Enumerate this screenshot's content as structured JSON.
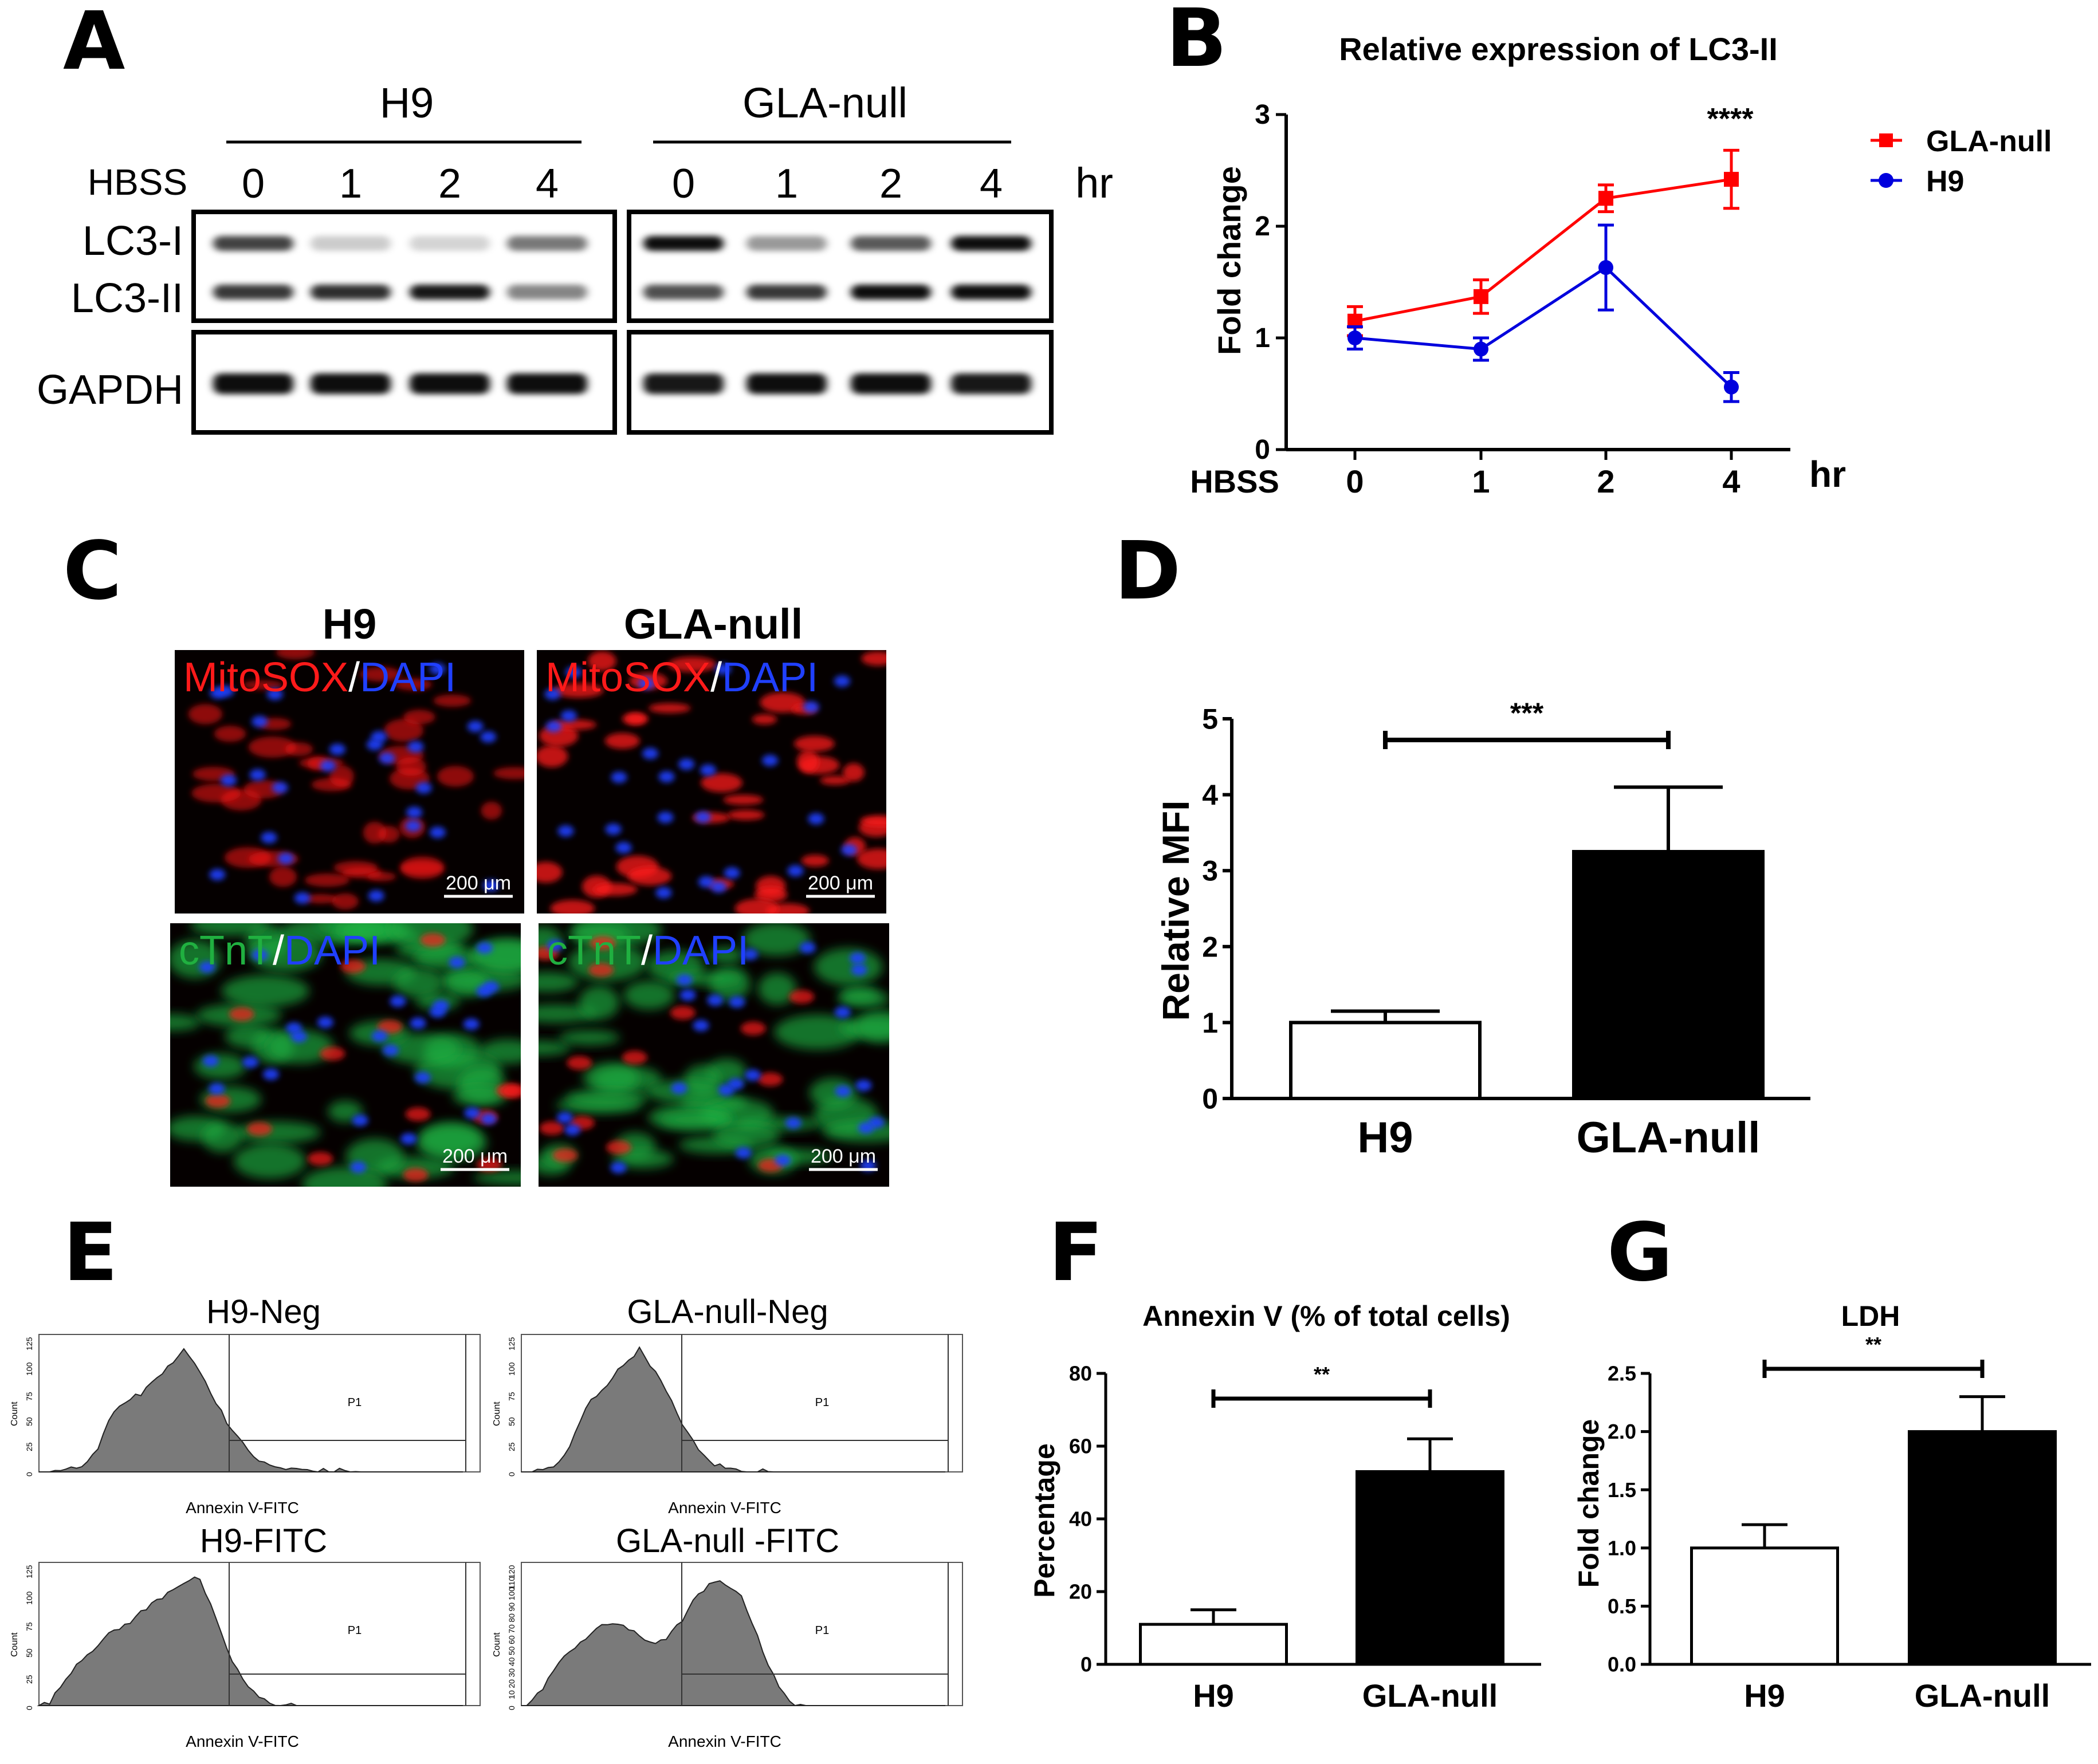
{
  "panels": {
    "A": {
      "letter": "A",
      "groups": [
        "H9",
        "GLA-null"
      ],
      "treatment_label": "HBSS",
      "time_points": [
        "0",
        "1",
        "2",
        "4"
      ],
      "time_unit": "hr",
      "row_labels": [
        "LC3-I",
        "LC3-II",
        "GAPDH"
      ],
      "band_intensity": {
        "H9": {
          "LC3-I": [
            0.75,
            0.12,
            0.08,
            0.5
          ],
          "LC3-II": [
            0.8,
            0.85,
            0.95,
            0.45
          ],
          "GAPDH": [
            1,
            1,
            1,
            1
          ]
        },
        "GLA-null": {
          "LC3-I": [
            1,
            0.35,
            0.65,
            1
          ],
          "LC3-II": [
            0.7,
            0.8,
            1,
            1
          ],
          "GAPDH": [
            0.95,
            1,
            1,
            0.95
          ]
        }
      }
    },
    "B": {
      "letter": "B"
    },
    "C": {
      "letter": "C",
      "columns": [
        "H9",
        "GLA-null"
      ],
      "top_stain": {
        "marker": "MitoSOX",
        "sep": "/",
        "counter": "DAPI"
      },
      "bottom_stain": {
        "marker": "cTnT",
        "sep": "/",
        "counter": "DAPI"
      },
      "scale_bar": "200 μm",
      "colors": {
        "mitosox": "#ff1a1a",
        "dapi": "#2040ff",
        "ctnt": "#20b040"
      }
    },
    "D": {
      "letter": "D"
    },
    "E": {
      "letter": "E",
      "plots": [
        {
          "title": "H9-Neg",
          "gate": "P1",
          "xlabel": "Annexin V-FITC",
          "ylabel": "Count",
          "y_ticks": [
            "0",
            "25",
            "50",
            "75",
            "100",
            "125"
          ],
          "hist": [
            0,
            0,
            0,
            1,
            2,
            3,
            5,
            6,
            8,
            12,
            15,
            25,
            38,
            52,
            60,
            66,
            70,
            72,
            78,
            80,
            85,
            90,
            96,
            100,
            105,
            110,
            118,
            124,
            120,
            112,
            102,
            90,
            80,
            72,
            62,
            52,
            42,
            34,
            28,
            22,
            17,
            12,
            8,
            6,
            5,
            4,
            3,
            3,
            2,
            2,
            2,
            1,
            1,
            1,
            1,
            1,
            1,
            1,
            1,
            1,
            0,
            0,
            0,
            0,
            0,
            0,
            0,
            0,
            0,
            0,
            0,
            0,
            0,
            0,
            0,
            0,
            0,
            0,
            0,
            0
          ]
        },
        {
          "title": "GLA-null-Neg",
          "gate": "P1",
          "xlabel": "Annexin V-FITC",
          "ylabel": "Count",
          "y_ticks": [
            "0",
            "25",
            "50",
            "75",
            "100",
            "125"
          ],
          "hist": [
            0,
            0,
            0,
            1,
            2,
            4,
            6,
            10,
            15,
            25,
            38,
            52,
            64,
            72,
            78,
            84,
            90,
            96,
            102,
            108,
            115,
            120,
            124,
            118,
            110,
            100,
            92,
            80,
            70,
            60,
            50,
            40,
            30,
            22,
            16,
            12,
            8,
            6,
            4,
            3,
            2,
            2,
            1,
            1,
            1,
            1,
            1,
            0,
            0,
            0,
            0,
            0,
            0,
            0,
            0,
            0,
            0,
            0,
            0,
            0,
            0,
            0,
            0,
            0,
            0,
            0,
            0,
            0,
            0,
            0,
            0,
            0,
            0,
            0,
            0,
            0,
            0,
            0,
            0,
            0
          ]
        },
        {
          "title": "H9-FITC",
          "gate": "P1",
          "xlabel": "Annexin V-FITC",
          "ylabel": "Count",
          "y_ticks": [
            "0",
            "25",
            "50",
            "75",
            "100",
            "125"
          ],
          "hist": [
            0,
            1,
            4,
            10,
            18,
            26,
            34,
            40,
            46,
            50,
            55,
            60,
            64,
            68,
            72,
            75,
            78,
            82,
            86,
            90,
            94,
            98,
            102,
            106,
            110,
            114,
            117,
            120,
            122,
            124,
            120,
            110,
            96,
            82,
            68,
            56,
            44,
            34,
            26,
            18,
            12,
            8,
            5,
            3,
            2,
            1,
            1,
            1,
            0,
            0,
            0,
            0,
            0,
            0,
            0,
            0,
            0,
            0,
            0,
            0,
            0,
            0,
            0,
            0,
            0,
            0,
            0,
            0,
            0,
            0,
            0,
            0,
            0,
            0,
            0,
            0,
            0,
            0,
            0,
            0
          ]
        },
        {
          "title": "GLA-null -FITC",
          "gate": "P1",
          "xlabel": "Annexin V-FITC",
          "ylabel": "Count",
          "y_ticks": [
            "0",
            "10",
            "20",
            "30",
            "40",
            "50",
            "60",
            "70",
            "80",
            "90",
            "100",
            "110",
            "120"
          ],
          "hist": [
            0,
            1,
            4,
            10,
            18,
            26,
            34,
            40,
            46,
            52,
            58,
            62,
            66,
            70,
            74,
            76,
            78,
            80,
            80,
            78,
            74,
            70,
            66,
            64,
            62,
            62,
            64,
            66,
            70,
            76,
            84,
            92,
            100,
            106,
            112,
            116,
            118,
            120,
            118,
            116,
            112,
            104,
            94,
            82,
            68,
            54,
            40,
            28,
            18,
            10,
            5,
            2,
            1,
            0,
            0,
            0,
            0,
            0,
            0,
            0,
            0,
            0,
            0,
            0,
            0,
            0,
            0,
            0,
            0,
            0,
            0,
            0,
            0,
            0,
            0,
            0,
            0,
            0,
            0,
            0
          ]
        }
      ]
    },
    "F": {
      "letter": "F"
    },
    "G": {
      "letter": "G"
    }
  },
  "chart_data": [
    {
      "panel": "B",
      "type": "line",
      "title": "Relative expression of LC3-II",
      "xlabel": "HBSS",
      "xunit": "hr",
      "ylabel": "Fold change",
      "categories": [
        "0",
        "1",
        "2",
        "4"
      ],
      "ylim": [
        0,
        3
      ],
      "yticks": [
        "0",
        "1",
        "2",
        "3"
      ],
      "annotation": "****",
      "series": [
        {
          "name": "GLA-null",
          "color": "#ff0000",
          "marker": "square",
          "values": [
            1.15,
            1.37,
            2.25,
            2.42
          ],
          "errors": [
            0.13,
            0.15,
            0.12,
            0.26
          ]
        },
        {
          "name": "H9",
          "color": "#0000dd",
          "marker": "circle",
          "values": [
            1.0,
            0.9,
            1.63,
            0.56
          ],
          "errors": [
            0.1,
            0.1,
            0.38,
            0.13
          ]
        }
      ]
    },
    {
      "panel": "D",
      "type": "bar",
      "title": "",
      "ylabel": "Relative MFI",
      "categories": [
        "H9",
        "GLA-null"
      ],
      "values": [
        1.0,
        3.25
      ],
      "errors": [
        0.15,
        0.85
      ],
      "fills": [
        "#ffffff",
        "#000000"
      ],
      "ylim": [
        0,
        5
      ],
      "yticks": [
        "0",
        "1",
        "2",
        "3",
        "4",
        "5"
      ],
      "significance": "***"
    },
    {
      "panel": "F",
      "type": "bar",
      "title": "Annexin V (% of total cells)",
      "ylabel": "Percentage",
      "categories": [
        "H9",
        "GLA-null"
      ],
      "values": [
        11,
        53
      ],
      "errors": [
        4,
        9
      ],
      "fills": [
        "#ffffff",
        "#000000"
      ],
      "ylim": [
        0,
        80
      ],
      "yticks": [
        "0",
        "20",
        "40",
        "60",
        "80"
      ],
      "significance": "**"
    },
    {
      "panel": "G",
      "type": "bar",
      "title": "LDH",
      "ylabel": "Fold change",
      "categories": [
        "H9",
        "GLA-null"
      ],
      "values": [
        1.0,
        2.0
      ],
      "errors": [
        0.2,
        0.3
      ],
      "fills": [
        "#ffffff",
        "#000000"
      ],
      "ylim": [
        0,
        2.5
      ],
      "yticks": [
        "0.0",
        "0.5",
        "1.0",
        "1.5",
        "2.0",
        "2.5"
      ],
      "significance": "**"
    }
  ]
}
